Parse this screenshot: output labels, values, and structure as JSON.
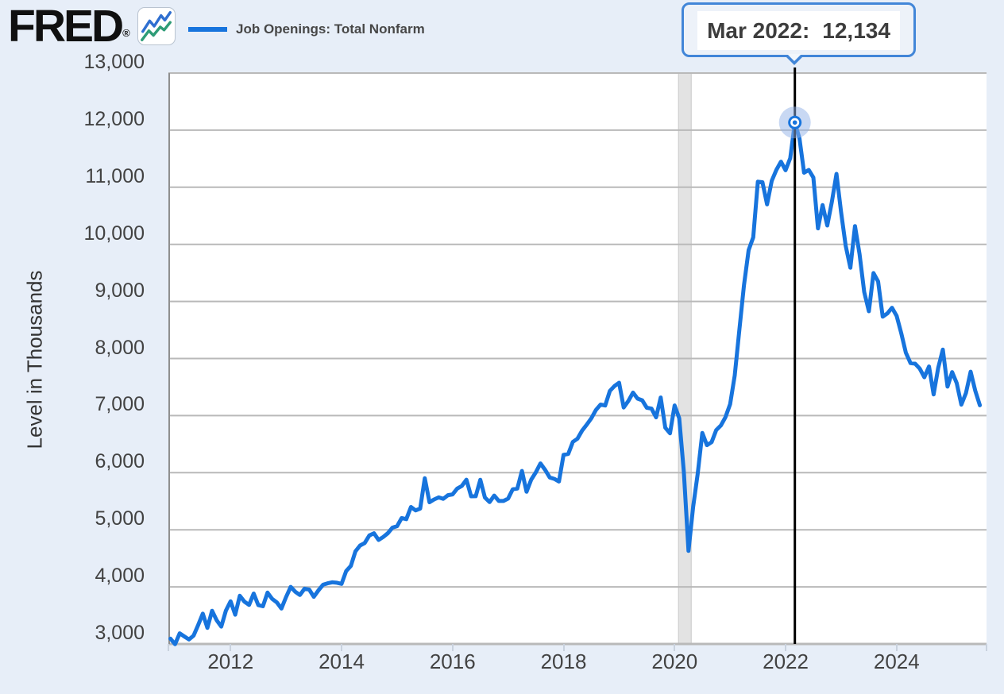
{
  "header": {
    "logo": "FRED",
    "registered": "®",
    "legend_label": "Job Openings: Total Nonfarm"
  },
  "tooltip": {
    "date_label": "Mar 2022:",
    "value": "12,134"
  },
  "chart_data": {
    "type": "line",
    "title": "Job Openings: Total Nonfarm",
    "xlabel": "",
    "ylabel": "Level in Thousands",
    "frequency": "monthly",
    "start": "2010-12",
    "end": "2025-07",
    "x_ticks": [
      2012,
      2014,
      2016,
      2018,
      2020,
      2022,
      2024
    ],
    "y_ticks": [
      3000,
      4000,
      5000,
      6000,
      7000,
      8000,
      9000,
      10000,
      11000,
      12000,
      13000
    ],
    "x_range": [
      2010.88,
      2025.62
    ],
    "y_range": [
      3000,
      13000
    ],
    "grid": true,
    "legend_position": "top-left",
    "recession_band": {
      "start": 2020.07,
      "end": 2020.3
    },
    "highlight": {
      "date": "2022-03",
      "label": "Mar 2022",
      "value": 12134
    },
    "colors": {
      "series": "#1774dd",
      "crosshair": "#000000",
      "halo": "rgba(146,177,232,0.5)",
      "gridline": "#b9b9b9",
      "axis_border": "#8f8f8f",
      "recession_band": "#e3e3e3",
      "recession_band_edge": "#c9c9c9",
      "tooltip_border": "#4286d8",
      "background": "#e7eef8",
      "icon_blue": "#2f6fd0",
      "icon_green": "#2e9c77"
    },
    "series": [
      {
        "name": "Job Openings: Total Nonfarm",
        "values": [
          3093,
          2996,
          3186,
          3132,
          3079,
          3146,
          3332,
          3531,
          3283,
          3581,
          3415,
          3305,
          3584,
          3748,
          3513,
          3844,
          3742,
          3684,
          3883,
          3680,
          3661,
          3900,
          3789,
          3729,
          3620,
          3821,
          4000,
          3914,
          3858,
          3968,
          3953,
          3826,
          3939,
          4038,
          4063,
          4081,
          4073,
          4053,
          4277,
          4367,
          4623,
          4725,
          4768,
          4901,
          4939,
          4822,
          4873,
          4940,
          5037,
          5064,
          5206,
          5187,
          5399,
          5340,
          5372,
          5903,
          5482,
          5531,
          5568,
          5542,
          5607,
          5620,
          5722,
          5768,
          5878,
          5587,
          5589,
          5876,
          5565,
          5486,
          5599,
          5505,
          5505,
          5547,
          5709,
          5722,
          6030,
          5666,
          5879,
          6007,
          6163,
          6052,
          5917,
          5891,
          5845,
          6313,
          6328,
          6539,
          6595,
          6736,
          6840,
          6954,
          7100,
          7193,
          7177,
          7432,
          7518,
          7576,
          7142,
          7257,
          7404,
          7297,
          7268,
          7138,
          7122,
          6970,
          7317,
          6787,
          6690,
          7178,
          6956,
          6019,
          4630,
          5397,
          5984,
          6697,
          6482,
          6536,
          6747,
          6826,
          6972,
          7200,
          7703,
          8496,
          9278,
          9899,
          10123,
          11098,
          11088,
          10700,
          11113,
          11303,
          11448,
          11297,
          11511,
          12134,
          11855,
          11254,
          11303,
          11170,
          10280,
          10687,
          10329,
          10746,
          11234,
          10563,
          9974,
          9590,
          10320,
          9824,
          9165,
          8827,
          9497,
          9350,
          8733,
          8790,
          8889,
          8748,
          8445,
          8103,
          7919,
          7910,
          7823,
          7672,
          7861,
          7372,
          7839,
          8156,
          7508,
          7762,
          7568,
          7192,
          7395,
          7769,
          7437,
          7181
        ]
      }
    ]
  }
}
